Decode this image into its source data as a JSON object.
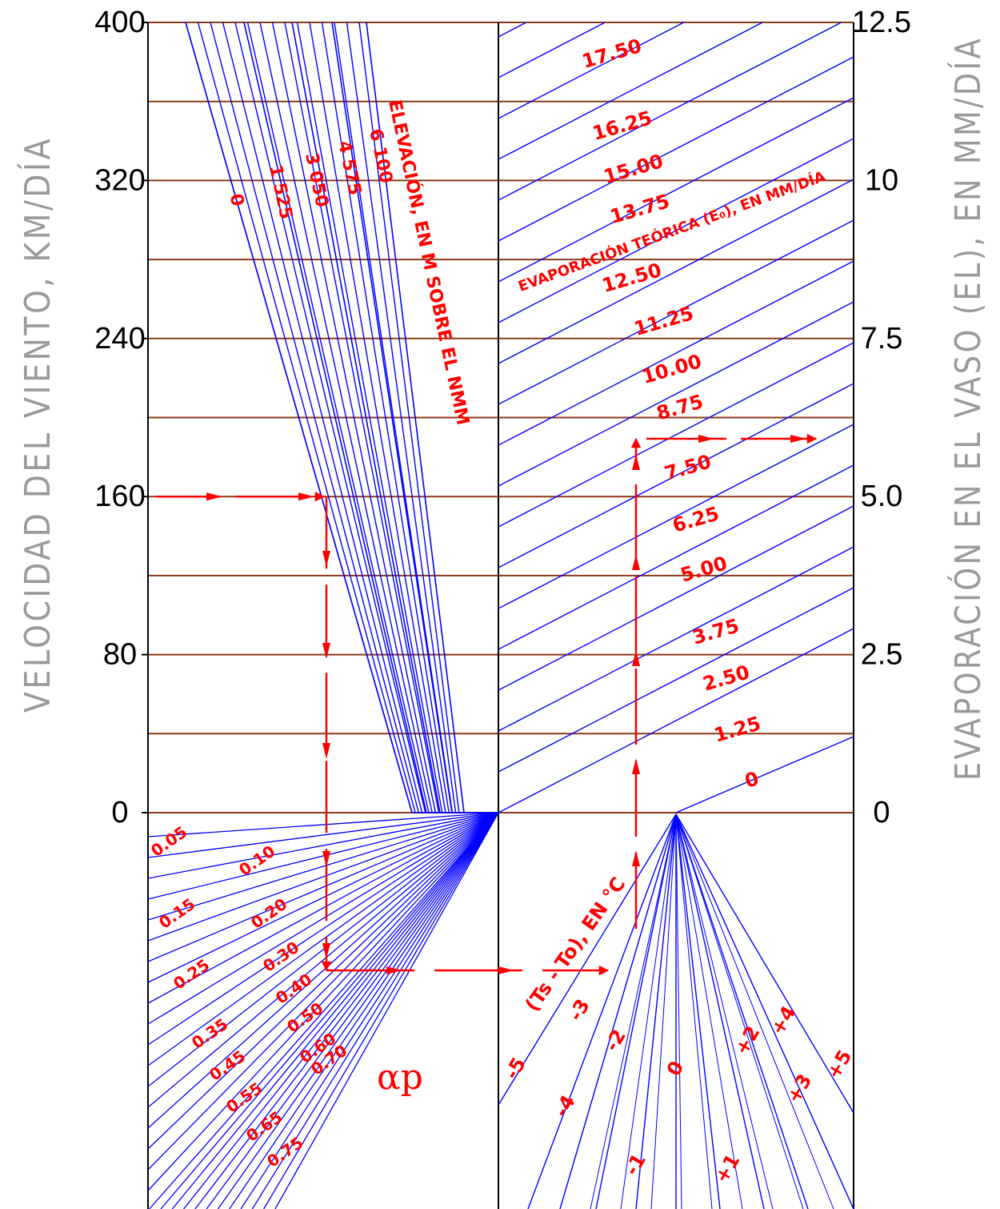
{
  "chart_data": {
    "type": "nomogram",
    "left_axis": {
      "label": "VELOCIDAD DEL VIENTO, KM/DÍA",
      "ticks": [
        "400",
        "320",
        "240",
        "160",
        "80",
        "0"
      ],
      "values": [
        400,
        320,
        240,
        160,
        80,
        0
      ]
    },
    "right_axis": {
      "label": "EVAPORACIÓN EN EL VASO (EL), EN MM/DÍA",
      "ticks": [
        "12.5",
        "10",
        "7.5",
        "5.0",
        "2.5",
        "0"
      ],
      "values": [
        12.5,
        10,
        7.5,
        5.0,
        2.5,
        0
      ]
    },
    "elevation_curves": {
      "title": "ELEVACIÓN, EN M SOBRE EL NMM",
      "labels": [
        "0",
        "1 525",
        "3 050",
        "4 575",
        "6 100"
      ]
    },
    "theoretical_evaporation": {
      "title": "EVAPORACIÓN TEÓRICA (E₀), EN MM/DÍA",
      "labels": [
        "17.50",
        "16.25",
        "15.00",
        "13.75",
        "12.50",
        "11.25",
        "10.00",
        "8.75",
        "7.50",
        "6.25",
        "5.00",
        "3.75",
        "2.50",
        "1.25",
        "0"
      ]
    },
    "alpha_p": {
      "symbol": "αp",
      "labels": [
        "0.05",
        "0.10",
        "0.15",
        "0.20",
        "0.25",
        "0.30",
        "0.35",
        "0.40",
        "0.45",
        "0.50",
        "0.55",
        "0.60",
        "0.65",
        "0.70",
        "0.75"
      ]
    },
    "temperature_difference": {
      "title": "(Ts - To), EN °C",
      "labels": [
        "-5",
        "-4",
        "-3",
        "-2",
        "-1",
        "0",
        "+1",
        "+2",
        "+3",
        "+4",
        "+5"
      ]
    },
    "example_path": {
      "wind_speed": 160,
      "result_evaporation": 5.5
    }
  },
  "colors": {
    "curves": "#0000ff",
    "labels": "#ff0000",
    "gridlines": "#8b3a1a",
    "axis": "#000000",
    "side_titles": "#9a9a9a"
  }
}
